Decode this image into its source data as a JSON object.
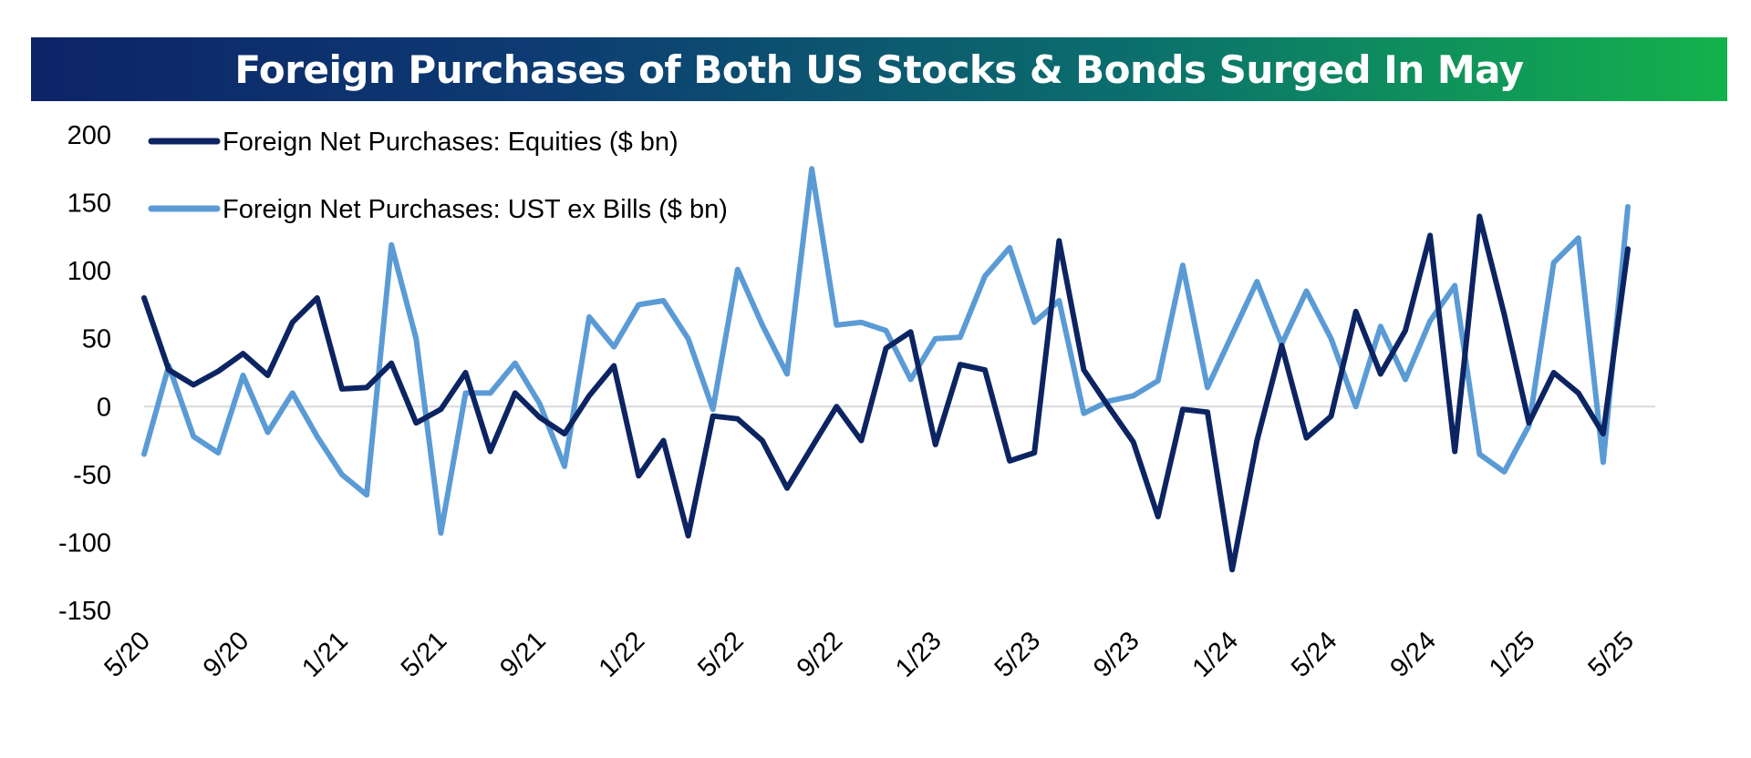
{
  "chart_data": {
    "type": "line",
    "title": "Foreign Purchases of Both US Stocks & Bonds Surged In May",
    "xlabel": "",
    "ylabel": "",
    "ylim": [
      -150,
      200
    ],
    "y_ticks": [
      200,
      150,
      100,
      50,
      0,
      -50,
      -100,
      -150
    ],
    "x_tick_labels": [
      "5/20",
      "9/20",
      "1/21",
      "5/21",
      "9/21",
      "1/22",
      "5/22",
      "9/22",
      "1/23",
      "5/23",
      "9/23",
      "1/24",
      "5/24",
      "9/24",
      "1/25",
      "5/25"
    ],
    "x": [
      "5/20",
      "6/20",
      "7/20",
      "8/20",
      "9/20",
      "10/20",
      "11/20",
      "12/20",
      "1/21",
      "2/21",
      "3/21",
      "4/21",
      "5/21",
      "6/21",
      "7/21",
      "8/21",
      "9/21",
      "10/21",
      "11/21",
      "12/21",
      "1/22",
      "2/22",
      "3/22",
      "4/22",
      "5/22",
      "6/22",
      "7/22",
      "8/22",
      "9/22",
      "10/22",
      "11/22",
      "12/22",
      "1/23",
      "2/23",
      "3/23",
      "4/23",
      "5/23",
      "6/23",
      "7/23",
      "8/23",
      "9/23",
      "10/23",
      "11/23",
      "12/23",
      "1/24",
      "2/24",
      "3/24",
      "4/24",
      "5/24",
      "6/24",
      "7/24",
      "8/24",
      "9/24",
      "10/24",
      "11/24",
      "12/24",
      "1/25",
      "2/25",
      "3/25",
      "4/25",
      "5/25"
    ],
    "grid": false,
    "legend_position": "top-left",
    "series": [
      {
        "name": "Foreign Net Purchases: Equities ($ bn)",
        "color": "#0c2461",
        "values": [
          80,
          27,
          16,
          26,
          39,
          23,
          62,
          80,
          13,
          14,
          32,
          -12,
          -2,
          25,
          -33,
          10,
          -8,
          -20,
          8,
          30,
          -51,
          -25,
          -95,
          -7,
          -9,
          -25,
          -60,
          -30,
          0,
          -25,
          43,
          55,
          -28,
          31,
          27,
          -40,
          -34,
          122,
          27,
          0,
          -26,
          -81,
          -2,
          -4,
          -120,
          -25,
          45,
          -23,
          -7,
          70,
          24,
          56,
          126,
          -33,
          140,
          68,
          -12,
          25,
          10,
          -20,
          116
        ]
      },
      {
        "name": "Foreign Net Purchases: UST ex Bills ($ bn)",
        "color": "#5b9bd5",
        "values": [
          -35,
          30,
          -22,
          -34,
          23,
          -19,
          10,
          -22,
          -50,
          -65,
          119,
          50,
          -93,
          10,
          10,
          32,
          2,
          -44,
          66,
          44,
          75,
          78,
          50,
          -2,
          101,
          60,
          24,
          175,
          60,
          62,
          56,
          20,
          50,
          51,
          96,
          117,
          62,
          78,
          -5,
          4,
          8,
          19,
          104,
          14,
          53,
          92,
          46,
          85,
          50,
          0,
          59,
          20,
          63,
          89,
          -35,
          -48,
          -14,
          106,
          124,
          -41,
          147
        ]
      }
    ]
  }
}
